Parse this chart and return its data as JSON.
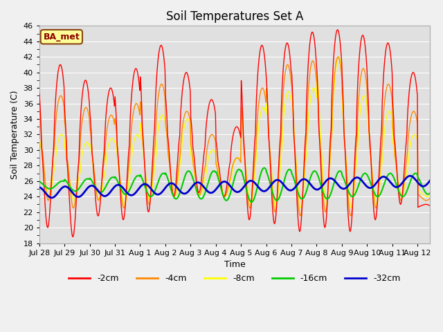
{
  "title": "Soil Temperatures Set A",
  "xlabel": "Time",
  "ylabel": "Soil Temperature (C)",
  "ylim": [
    18,
    46
  ],
  "yticks": [
    18,
    20,
    22,
    24,
    26,
    28,
    30,
    32,
    34,
    36,
    38,
    40,
    42,
    44,
    46
  ],
  "line_colors": {
    "m2cm": "#ff0000",
    "m4cm": "#ff8800",
    "m8cm": "#ffff00",
    "m16cm": "#00cc00",
    "m32cm": "#0000cc"
  },
  "line_widths": {
    "m2cm": 1.0,
    "m4cm": 1.0,
    "m8cm": 1.0,
    "m16cm": 1.5,
    "m32cm": 2.0
  },
  "legend_labels": [
    "-2cm",
    "-4cm",
    "-8cm",
    "-16cm",
    "-32cm"
  ],
  "station_label": "BA_met",
  "fig_facecolor": "#f0f0f0",
  "ax_facecolor": "#e0e0e0",
  "n_days": 15.5,
  "points_per_day": 48,
  "day_labels": [
    "Jul 28",
    "Jul 29",
    "Jul 30",
    "Jul 31",
    "Aug 1",
    "Aug 2",
    "Aug 3",
    "Aug 4",
    "Aug 5",
    "Aug 6",
    "Aug 7",
    "Aug 8",
    "Aug 9",
    "Aug 10",
    "Aug 11",
    "Aug 12"
  ],
  "peak_hours_2cm": 0.58,
  "peak_hours_4cm": 0.6,
  "peak_hours_8cm": 0.63,
  "peak_hours_16cm": 0.67,
  "peak_hours_32cm": 0.72,
  "peak2cm": [
    41.0,
    39.0,
    38.0,
    40.5,
    43.5,
    40.0,
    36.5,
    33.0,
    43.5,
    43.8,
    45.2,
    45.5,
    44.8,
    43.8,
    40.0,
    22.5
  ],
  "trough2cm": [
    20.0,
    18.8,
    21.5,
    21.0,
    22.0,
    24.0,
    24.5,
    24.0,
    21.0,
    20.5,
    19.5,
    20.0,
    19.5,
    21.0,
    23.0,
    23.0
  ],
  "peak4cm": [
    37.0,
    35.5,
    34.5,
    36.0,
    38.5,
    35.0,
    32.0,
    29.0,
    38.0,
    41.0,
    41.5,
    42.0,
    40.5,
    38.5,
    35.0,
    24.5
  ],
  "trough4cm": [
    23.5,
    22.5,
    23.5,
    22.5,
    23.0,
    24.0,
    24.2,
    24.0,
    22.5,
    22.0,
    21.5,
    22.0,
    21.5,
    22.5,
    23.5,
    23.5
  ],
  "peak8cm": [
    32.0,
    31.0,
    31.5,
    32.0,
    34.5,
    34.0,
    30.0,
    29.0,
    35.5,
    37.5,
    38.0,
    42.0,
    37.0,
    35.0,
    32.0,
    25.0
  ],
  "trough8cm": [
    24.0,
    23.5,
    23.5,
    23.0,
    23.5,
    24.0,
    24.2,
    24.0,
    23.0,
    22.5,
    22.5,
    23.0,
    22.5,
    23.0,
    24.0,
    24.0
  ],
  "base16cm": 25.5,
  "amp16cm_vals": [
    0.5,
    0.8,
    1.0,
    1.2,
    1.5,
    1.8,
    1.8,
    2.0,
    2.2,
    2.0,
    1.8,
    1.8,
    1.5,
    1.5,
    1.5,
    1.2
  ],
  "base32cm": 24.5,
  "amp32cm": 0.7,
  "trend32cm": 0.1
}
